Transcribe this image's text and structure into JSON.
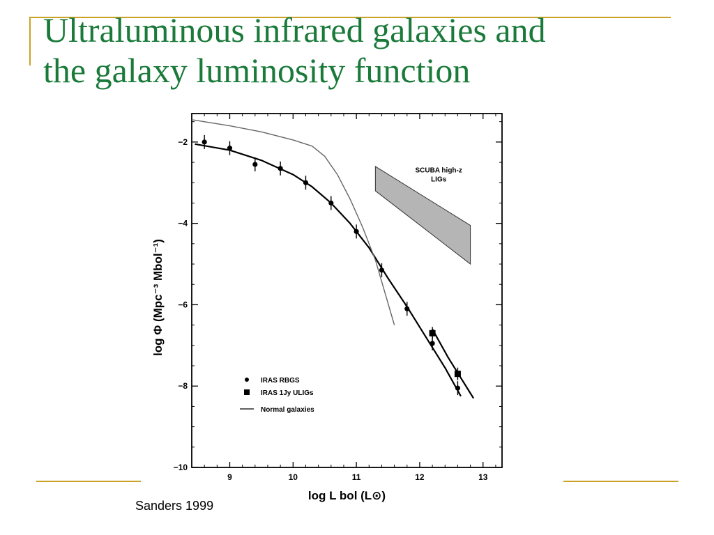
{
  "slide": {
    "title_line1": "Ultraluminous infrared galaxies and",
    "title_line2": "the galaxy  luminosity function",
    "caption": "Sanders 1999",
    "accent_color": "#c9a227",
    "title_color": "#1a7a3a"
  },
  "chart_data": {
    "type": "scatter",
    "title": "",
    "xlabel": "log L bol  (L⊙)",
    "ylabel": "log Φ  (Mpc⁻³ Mbol⁻¹)",
    "xlim": [
      8.4,
      13.3
    ],
    "ylim": [
      -10,
      -1.3
    ],
    "x_ticks": [
      9,
      10,
      11,
      12,
      13
    ],
    "y_ticks": [
      -2,
      -4,
      -6,
      -8,
      -10
    ],
    "legend_position": "bottom-left",
    "legend": [
      {
        "marker": "dot",
        "label": "IRAS RBGS"
      },
      {
        "marker": "square",
        "label": "IRAS 1Jy ULIGs"
      },
      {
        "marker": "line",
        "label": "Normal galaxies"
      }
    ],
    "series": [
      {
        "name": "IRAS RBGS",
        "marker": "dot",
        "x": [
          8.6,
          9.0,
          9.4,
          9.8,
          10.2,
          10.6,
          11.0,
          11.4,
          11.8,
          12.2,
          12.6
        ],
        "y": [
          -2.0,
          -2.15,
          -2.55,
          -2.65,
          -3.0,
          -3.5,
          -4.2,
          -5.15,
          -6.1,
          -6.95,
          -8.05
        ]
      },
      {
        "name": "IRAS 1Jy ULIGs",
        "marker": "square",
        "x": [
          12.2,
          12.6
        ],
        "y": [
          -6.7,
          -7.7
        ]
      },
      {
        "name": "",
        "style": "fit-line",
        "x": [
          8.45,
          9.0,
          9.5,
          10.0,
          10.3,
          10.6,
          10.9,
          11.2,
          11.5,
          11.8,
          12.1,
          12.4,
          12.65
        ],
        "y": [
          -2.05,
          -2.2,
          -2.45,
          -2.8,
          -3.1,
          -3.5,
          -4.0,
          -4.6,
          -5.35,
          -6.05,
          -6.8,
          -7.55,
          -8.25
        ]
      },
      {
        "name": "",
        "style": "fit-line",
        "x": [
          12.2,
          12.45,
          12.85
        ],
        "y": [
          -6.6,
          -7.3,
          -8.3
        ]
      },
      {
        "name": "Normal galaxies",
        "style": "thin-line",
        "x": [
          8.4,
          9.0,
          9.5,
          10.0,
          10.3,
          10.5,
          10.7,
          10.9,
          11.1,
          11.3,
          11.45,
          11.6
        ],
        "y": [
          -1.45,
          -1.6,
          -1.75,
          -1.95,
          -2.1,
          -2.35,
          -2.8,
          -3.4,
          -4.1,
          -4.9,
          -5.7,
          -6.5
        ]
      }
    ],
    "annotation": {
      "text_line1": "SCUBA high-z",
      "text_line2": "LIGs",
      "region": [
        [
          11.3,
          -2.6
        ],
        [
          12.8,
          -4.05
        ],
        [
          12.8,
          -5.0
        ],
        [
          11.3,
          -3.2
        ]
      ]
    }
  }
}
